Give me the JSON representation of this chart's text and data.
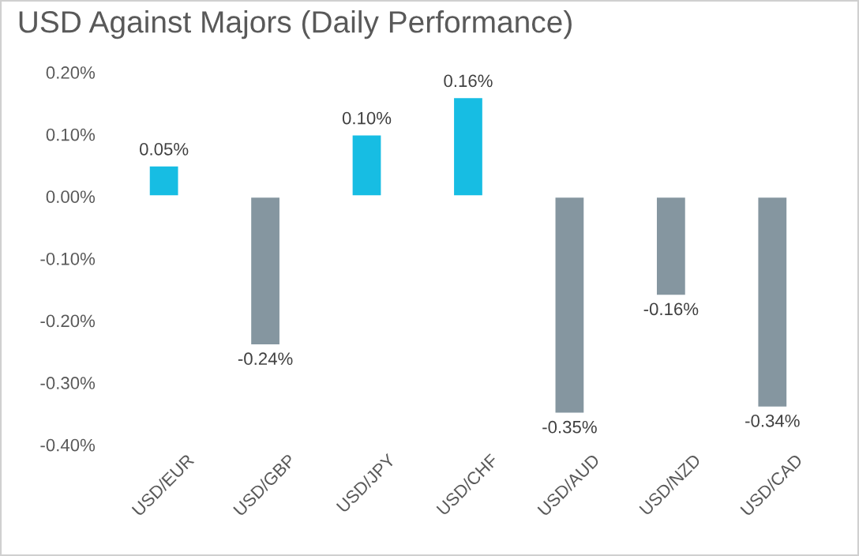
{
  "chart_data": {
    "type": "bar",
    "title": "USD Against Majors (Daily Performance)",
    "categories": [
      "USD/EUR",
      "USD/GBP",
      "USD/JPY",
      "USD/CHF",
      "USD/AUD",
      "USD/NZD",
      "USD/CAD"
    ],
    "values": [
      0.05,
      -0.24,
      0.1,
      0.16,
      -0.35,
      -0.16,
      -0.34
    ],
    "colors": [
      "#17bde3",
      "#8596a0",
      "#17bde3",
      "#17bde3",
      "#8596a0",
      "#8596a0",
      "#8596a0"
    ],
    "value_labels": [
      "0.05%",
      "-0.24%",
      "0.10%",
      "0.16%",
      "-0.35%",
      "-0.16%",
      "-0.34%"
    ],
    "ylim": [
      -0.4,
      0.2
    ],
    "yticks": [
      {
        "value": 0.2,
        "label": "0.20%"
      },
      {
        "value": 0.1,
        "label": "0.10%"
      },
      {
        "value": 0,
        "label": "0.00%"
      },
      {
        "value": -0.1,
        "label": "-0.10%"
      },
      {
        "value": -0.2,
        "label": "-0.20%"
      },
      {
        "value": -0.3,
        "label": "-0.30%"
      },
      {
        "value": -0.4,
        "label": "-0.40%"
      }
    ],
    "grid": false
  }
}
